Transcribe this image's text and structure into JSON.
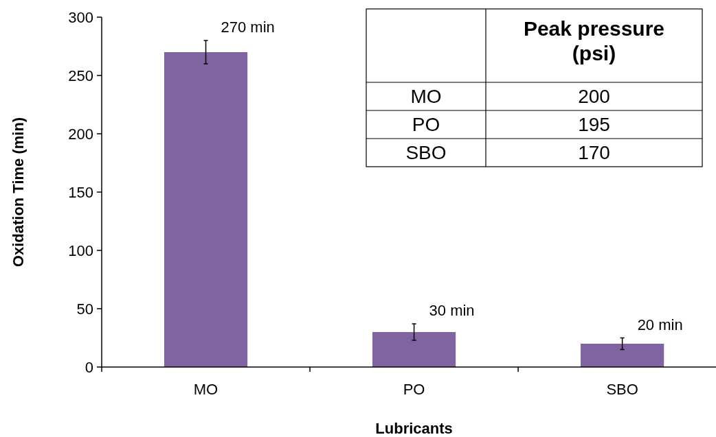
{
  "chart_data": [
    {
      "type": "bar",
      "categories": [
        "MO",
        "PO",
        "SBO"
      ],
      "values": [
        270,
        30,
        20
      ],
      "errors": [
        10,
        7,
        5
      ],
      "value_labels": [
        "270 min",
        "30 min",
        "20 min"
      ],
      "color": "#8064a2",
      "xlabel": "Lubricants",
      "ylabel": "Oxidation Time (min)",
      "ylim": [
        0,
        300
      ],
      "yticks": [
        0,
        50,
        100,
        150,
        200,
        250,
        300
      ],
      "grid": false
    },
    {
      "type": "other",
      "title": "Peak pressure (psi)",
      "categories": [
        "MO",
        "PO",
        "SBO"
      ],
      "values": [
        200,
        195,
        170
      ],
      "data_labels": true
    }
  ]
}
